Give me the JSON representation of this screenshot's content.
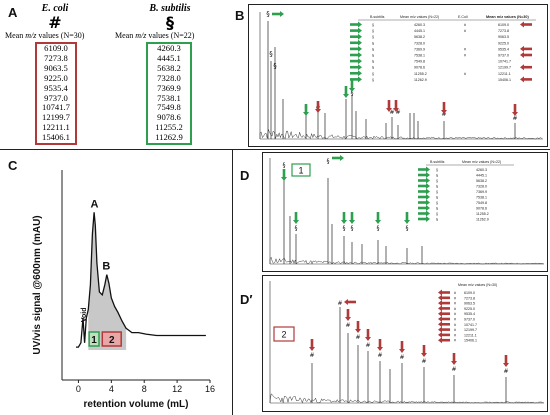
{
  "panel_A": {
    "label": "A",
    "ecoli": {
      "name": "E. coli",
      "symbol": "#",
      "mean_prefix": "Mean",
      "mean_mz": "m/z",
      "mean_suffix": "values (N=30)",
      "values": [
        "6109.0",
        "7273.8",
        "9063.5",
        "9225.0",
        "9535.4",
        "9737.0",
        "10741.7",
        "12199.7",
        "12211.1",
        "15406.1"
      ],
      "color": "#b03a3a"
    },
    "bsubtilis": {
      "name": "B. subtilis",
      "symbol": "§",
      "mean_prefix": "Mean",
      "mean_mz": "m/z",
      "mean_suffix": "values (N=22)",
      "values": [
        "4260.3",
        "4445.1",
        "5638.2",
        "7328.0",
        "7369.9",
        "7538.1",
        "7549.8",
        "9078.6",
        "11255.2",
        "11262.9"
      ],
      "color": "#2e9e4f"
    }
  },
  "panel_B": {
    "label": "B",
    "table_headers": [
      "B.subtilis",
      "Mean m/z values (N=22)",
      "E.Coli",
      "Mean m/z values (N=30)"
    ],
    "bs_values": [
      "4260.3",
      "4445.1",
      "5638.2",
      "7328.0",
      "7369.9",
      "7538.1",
      "7549.8",
      "9078.6",
      "11255.2",
      "11262.9"
    ],
    "ec_values": [
      "6109.0",
      "7273.8",
      "9063.5",
      "9225.0",
      "9535.4",
      "9737.0",
      "10741.7",
      "12199.7",
      "12211.1",
      "15406.1"
    ]
  },
  "panel_C": {
    "label": "C",
    "ylabel": "UV/vis signal @600nm (mAU)",
    "xlabel": "retention volume (mL)",
    "xticks": [
      "0",
      "4",
      "8",
      "12",
      "16"
    ],
    "peak_A": "A",
    "peak_B": "B",
    "void_label": "Void",
    "fraction_1": "1",
    "fraction_2": "2"
  },
  "panel_D": {
    "label": "D",
    "badge": "1",
    "table_headers": [
      "B.subtilis",
      "Mean m/z values (N=22)"
    ],
    "values": [
      "4260.3",
      "4445.1",
      "5638.2",
      "7328.0",
      "7369.9",
      "7538.1",
      "7549.8",
      "9078.6",
      "11255.2",
      "11262.9"
    ]
  },
  "panel_D2": {
    "label": "D′",
    "badge": "2",
    "table_header": "Mean m/z values (N=30)",
    "values": [
      "6109.0",
      "7273.8",
      "9063.5",
      "9225.0",
      "9535.4",
      "9737.0",
      "10741.7",
      "12199.7",
      "12211.1",
      "15406.1"
    ]
  },
  "colors": {
    "green": "#2e9e4f",
    "red": "#b03a3a",
    "fraction1_fill": "#bfe0bf",
    "fraction2_fill": "#e8a6a6"
  }
}
